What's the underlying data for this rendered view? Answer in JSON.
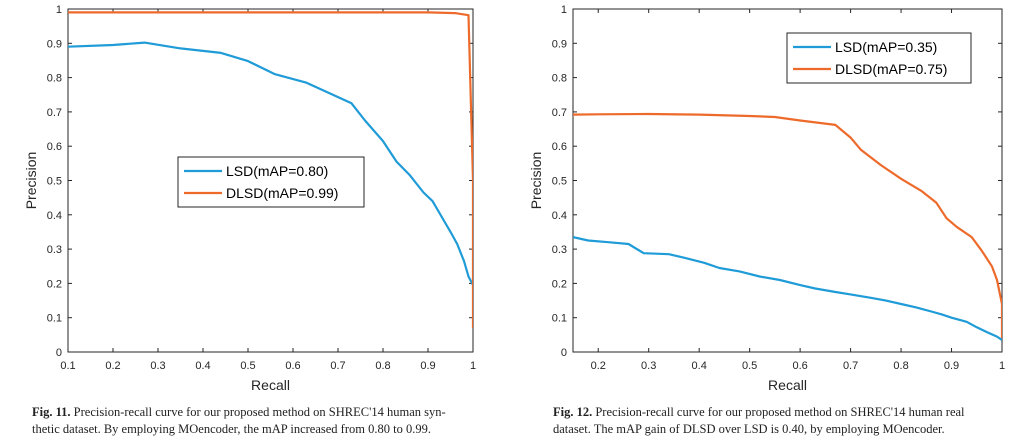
{
  "figures": [
    {
      "caption_label": "Fig. 11.",
      "caption_line1": "Precision-recall curve for our proposed method on SHREC'14 human syn-",
      "caption_line2": "thetic dataset. By employing MOencoder, the mAP increased from 0.80 to 0.99."
    },
    {
      "caption_label": "Fig. 12.",
      "caption_line1": "Precision-recall curve for our proposed method on SHREC'14 human real",
      "caption_line2": "dataset. The mAP gain of DLSD over LSD is 0.40, by employing MOencoder."
    }
  ],
  "chart_data": [
    {
      "type": "line",
      "xlabel": "Recall",
      "ylabel": "Precision",
      "xlim": [
        0.1,
        1.0
      ],
      "ylim": [
        0,
        1
      ],
      "xticks": [
        "0.1",
        "0.2",
        "0.3",
        "0.4",
        "0.5",
        "0.6",
        "0.7",
        "0.8",
        "0.9",
        "1"
      ],
      "yticks": [
        "0",
        "0.1",
        "0.2",
        "0.3",
        "0.4",
        "0.5",
        "0.6",
        "0.7",
        "0.8",
        "0.9",
        "1"
      ],
      "grid": false,
      "legend_position": "center",
      "series": [
        {
          "name": "LSD(mAP=0.80)",
          "color": "#1f9bd7",
          "x": [
            0.1,
            0.2,
            0.27,
            0.35,
            0.44,
            0.5,
            0.56,
            0.63,
            0.68,
            0.73,
            0.76,
            0.8,
            0.83,
            0.86,
            0.89,
            0.91,
            0.93,
            0.95,
            0.965,
            0.98,
            0.99,
            1.0
          ],
          "y": [
            0.89,
            0.895,
            0.902,
            0.885,
            0.872,
            0.848,
            0.81,
            0.785,
            0.755,
            0.725,
            0.675,
            0.615,
            0.555,
            0.515,
            0.465,
            0.44,
            0.395,
            0.35,
            0.315,
            0.265,
            0.22,
            0.195
          ]
        },
        {
          "name": "DLSD(mAP=0.99)",
          "color": "#ed6a2b",
          "x": [
            0.1,
            0.3,
            0.5,
            0.7,
            0.9,
            0.96,
            0.99,
            1.0,
            1.0
          ],
          "y": [
            0.99,
            0.99,
            0.99,
            0.99,
            0.99,
            0.988,
            0.982,
            0.5,
            0.07
          ]
        }
      ]
    },
    {
      "type": "line",
      "xlabel": "Recall",
      "ylabel": "Precision",
      "xlim": [
        0.15,
        1.0
      ],
      "ylim": [
        0,
        1
      ],
      "xticks": [
        "0.2",
        "0.3",
        "0.4",
        "0.5",
        "0.6",
        "0.7",
        "0.8",
        "0.9",
        "1"
      ],
      "yticks": [
        "0",
        "0.1",
        "0.2",
        "0.3",
        "0.4",
        "0.5",
        "0.6",
        "0.7",
        "0.8",
        "0.9",
        "1"
      ],
      "grid": false,
      "legend_position": "top-right",
      "series": [
        {
          "name": "LSD(mAP=0.35)",
          "color": "#1f9bd7",
          "x": [
            0.15,
            0.18,
            0.22,
            0.26,
            0.29,
            0.34,
            0.37,
            0.41,
            0.44,
            0.48,
            0.52,
            0.56,
            0.6,
            0.63,
            0.67,
            0.7,
            0.74,
            0.77,
            0.8,
            0.83,
            0.86,
            0.88,
            0.9,
            0.93,
            0.95,
            0.97,
            0.99,
            1.0
          ],
          "y": [
            0.335,
            0.325,
            0.32,
            0.315,
            0.288,
            0.285,
            0.275,
            0.26,
            0.245,
            0.235,
            0.22,
            0.21,
            0.195,
            0.185,
            0.175,
            0.168,
            0.158,
            0.15,
            0.14,
            0.13,
            0.118,
            0.11,
            0.1,
            0.088,
            0.072,
            0.058,
            0.045,
            0.035
          ]
        },
        {
          "name": "DLSD(mAP=0.75)",
          "color": "#ed6a2b",
          "x": [
            0.15,
            0.2,
            0.3,
            0.4,
            0.5,
            0.55,
            0.6,
            0.67,
            0.7,
            0.72,
            0.76,
            0.8,
            0.84,
            0.87,
            0.89,
            0.91,
            0.94,
            0.96,
            0.98,
            0.99,
            1.0,
            1.0
          ],
          "y": [
            0.692,
            0.693,
            0.694,
            0.692,
            0.688,
            0.685,
            0.675,
            0.662,
            0.625,
            0.59,
            0.545,
            0.505,
            0.47,
            0.435,
            0.39,
            0.365,
            0.335,
            0.295,
            0.25,
            0.21,
            0.14,
            0.04
          ]
        }
      ]
    }
  ]
}
